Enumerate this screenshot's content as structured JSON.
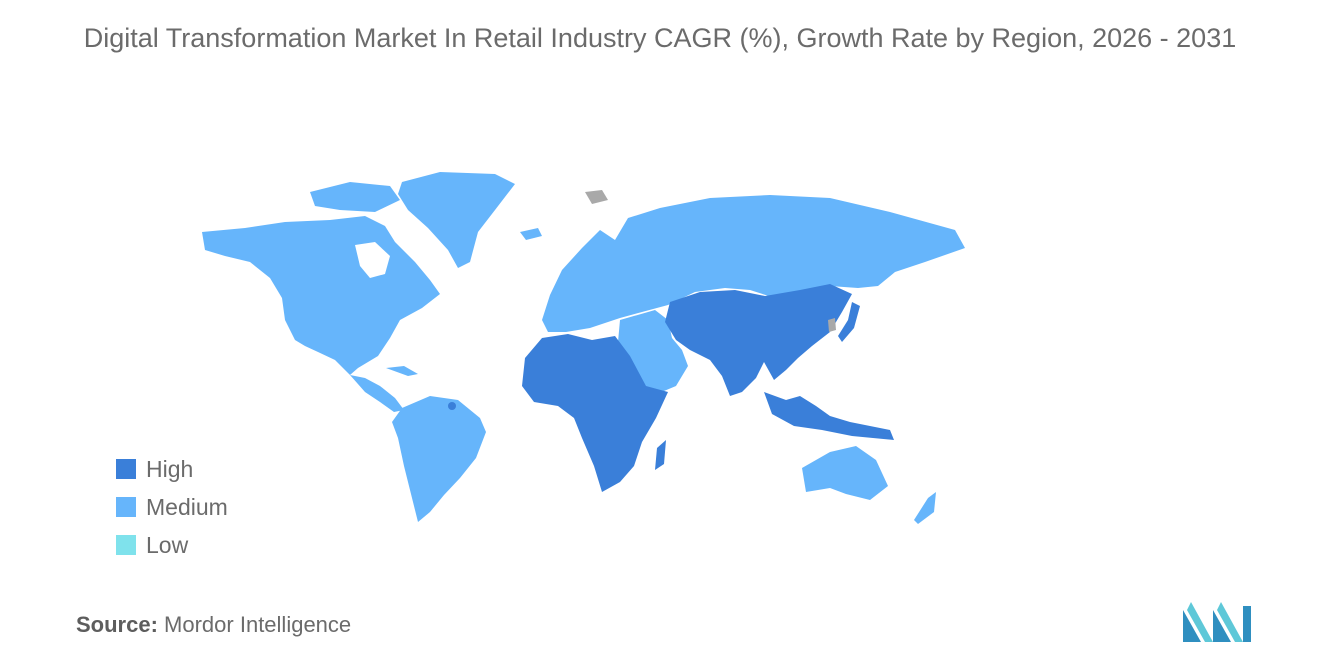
{
  "title": "Digital Transformation Market In Retail Industry CAGR (%), Growth Rate by Region, 2026 - 2031",
  "legend": [
    {
      "label": "High",
      "color": "#3a7fd9"
    },
    {
      "label": "Medium",
      "color": "#66b5fb"
    },
    {
      "label": "Low",
      "color": "#7fe2ec"
    }
  ],
  "source": {
    "key": "Source:",
    "value": "Mordor Intelligence"
  },
  "colors": {
    "high": "#3a7fd9",
    "medium": "#66b5fb",
    "low": "#7fe2ec",
    "no_data": "#a9a9a9",
    "text": "#6b6b6b"
  },
  "regions": [
    {
      "name": "North America",
      "level": "Medium"
    },
    {
      "name": "South America",
      "level": "Medium"
    },
    {
      "name": "Europe",
      "level": "Medium"
    },
    {
      "name": "Middle East",
      "level": "Medium"
    },
    {
      "name": "Africa",
      "level": "High"
    },
    {
      "name": "Asia Pacific",
      "level": "High"
    },
    {
      "name": "Australia & New Zealand",
      "level": "Medium"
    }
  ]
}
